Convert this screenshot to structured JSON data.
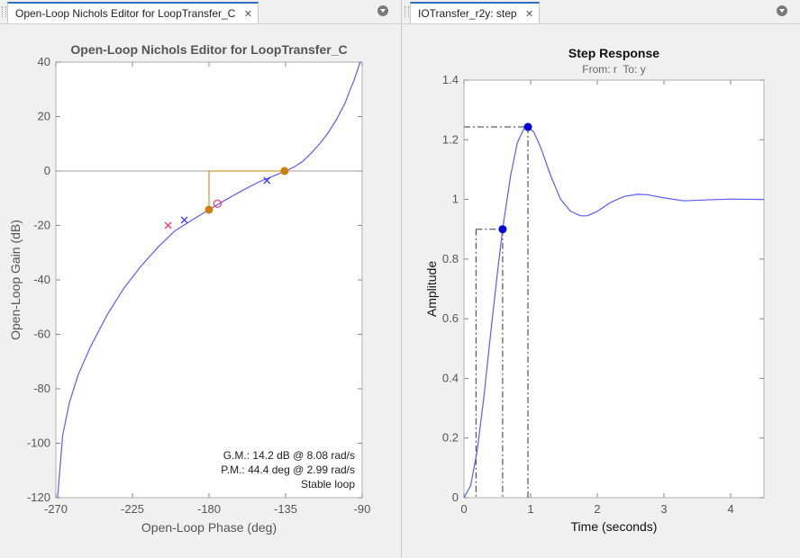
{
  "tabs": {
    "left": {
      "label": "Open-Loop Nichols Editor for LoopTransfer_C",
      "close": "✕"
    },
    "right": {
      "label": "IOTransfer_r2y: step",
      "close": "✕"
    }
  },
  "colors": {
    "curve": "#5b5bff",
    "margin_marker": "#c8820a",
    "pole": "#3333ff",
    "zero": "#ff3366",
    "step_curve": "#5b5bff",
    "step_marker": "#0000dd"
  },
  "chart_data": [
    {
      "type": "line",
      "title": "Open-Loop Nichols Editor for LoopTransfer_C",
      "xlabel": "Open-Loop Phase (deg)",
      "ylabel": "Open-Loop Gain (dB)",
      "xlim": [
        -270,
        -90
      ],
      "ylim": [
        -120,
        40
      ],
      "xticks": [
        -270,
        -225,
        -180,
        -135,
        -90
      ],
      "yticks": [
        -120,
        -100,
        -80,
        -60,
        -40,
        -20,
        0,
        20,
        40
      ],
      "grid": false,
      "series": [
        {
          "x": [
            -269,
            -266,
            -262,
            -257,
            -250,
            -240,
            -230,
            -220,
            -210,
            -200,
            -190,
            -180,
            -170,
            -160,
            -150,
            -140,
            -135,
            -130,
            -125,
            -120,
            -115,
            -110,
            -105,
            -100,
            -97,
            -95,
            -93,
            -92,
            -91
          ],
          "values": [
            -120,
            -97,
            -85,
            -75,
            -65,
            -53,
            -43,
            -35,
            -28,
            -22,
            -18,
            -14.2,
            -10.5,
            -7,
            -3.8,
            -1.3,
            0,
            1.5,
            3.5,
            6.5,
            10,
            14,
            19,
            25,
            30,
            33,
            36.5,
            38.5,
            40
          ]
        }
      ],
      "zero_line": 0,
      "gain_margin_point": {
        "x": -180,
        "y": -14.2
      },
      "phase_margin_point": {
        "x": -135.6,
        "y": 0
      },
      "poles": [
        {
          "x": -194.5,
          "y": -18
        },
        {
          "x": -146,
          "y": -3.5
        }
      ],
      "zeros_x": [
        {
          "x": -204,
          "y": -20
        }
      ],
      "zeros_o": [
        {
          "x": -175,
          "y": -12
        }
      ],
      "annotations": [
        "G.M.: 14.2 dB @ 8.08 rad/s",
        "P.M.: 44.4 deg @ 2.99 rad/s",
        "Stable loop"
      ]
    },
    {
      "type": "line",
      "title": "Step Response",
      "subtitle": "From: r  To: y",
      "xlabel": "Time (seconds)",
      "ylabel": "Amplitude",
      "xlim": [
        0,
        4.5
      ],
      "ylim": [
        0,
        1.4
      ],
      "xticks": [
        0,
        1,
        2,
        3,
        4
      ],
      "yticks": [
        0,
        0.2,
        0.4,
        0.6,
        0.8,
        1,
        1.2,
        1.4
      ],
      "grid": false,
      "series": [
        {
          "x": [
            0,
            0.1,
            0.2,
            0.3,
            0.4,
            0.5,
            0.58,
            0.7,
            0.8,
            0.9,
            0.96,
            1.05,
            1.15,
            1.3,
            1.45,
            1.6,
            1.75,
            1.85,
            2.0,
            2.2,
            2.4,
            2.6,
            2.75,
            3.0,
            3.3,
            3.6,
            4.0,
            4.5
          ],
          "values": [
            0,
            0.04,
            0.16,
            0.34,
            0.55,
            0.75,
            0.9,
            1.08,
            1.19,
            1.237,
            1.243,
            1.225,
            1.175,
            1.08,
            1.0,
            0.96,
            0.945,
            0.945,
            0.96,
            0.99,
            1.01,
            1.017,
            1.016,
            1.005,
            0.995,
            0.998,
            1.001,
            1.0
          ]
        }
      ],
      "peak_point": {
        "x": 0.96,
        "y": 1.243
      },
      "rise_point": {
        "x": 0.58,
        "y": 0.9
      },
      "rise_start_x": 0.18
    }
  ]
}
